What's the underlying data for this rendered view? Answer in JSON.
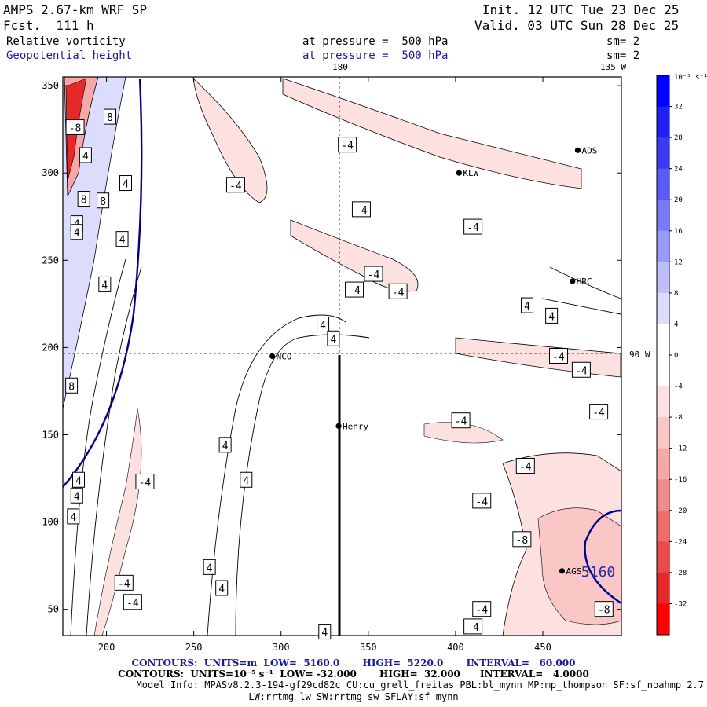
{
  "header": {
    "model": "AMPS 2.67-km WRF SP",
    "init": "Init. 12 UTC Tue 23 Dec 25",
    "fcst": "Fcst.  111 h",
    "valid": "Valid. 03 UTC Sun 28 Dec 25",
    "field1": "Relative vorticity",
    "field1_level": "at pressure =  500 hPa",
    "field1_sm": "sm= 2",
    "field2": "Geopotential height",
    "field2_level": "at pressure =  500 hPa",
    "field2_sm": "sm= 2"
  },
  "map_labels": {
    "lon_top": "180",
    "lon_topright": "135 W",
    "lon_right": "90 W"
  },
  "stations": [
    {
      "name": "NCO",
      "x": 295,
      "y": 195
    },
    {
      "name": "Henry",
      "x": 333,
      "y": 155
    },
    {
      "name": "HRC",
      "x": 467,
      "y": 238
    },
    {
      "name": "ADS",
      "x": 470,
      "y": 313
    },
    {
      "name": "KLW",
      "x": 402,
      "y": 300
    },
    {
      "name": "AGS",
      "x": 461,
      "y": 72
    }
  ],
  "chart_data": {
    "type": "contour",
    "xlim": [
      175,
      495
    ],
    "ylim": [
      35,
      355
    ],
    "xticks": [
      200,
      250,
      300,
      350,
      400,
      450
    ],
    "yticks": [
      50,
      100,
      150,
      200,
      250,
      300,
      350
    ],
    "height_contour_labels": [
      {
        "text": "5160",
        "x": 472,
        "y": 72
      }
    ],
    "vorticity_contour_labels": [
      {
        "text": "-8",
        "x": 182,
        "y": 326
      },
      {
        "text": "8",
        "x": 202,
        "y": 332
      },
      {
        "text": "4",
        "x": 188,
        "y": 310
      },
      {
        "text": "4",
        "x": 211,
        "y": 294
      },
      {
        "text": "8",
        "x": 187,
        "y": 285
      },
      {
        "text": "8",
        "x": 198,
        "y": 284
      },
      {
        "text": "4",
        "x": 183,
        "y": 271
      },
      {
        "text": "4",
        "x": 183,
        "y": 266
      },
      {
        "text": "4",
        "x": 209,
        "y": 262
      },
      {
        "text": "4",
        "x": 199,
        "y": 236
      },
      {
        "text": "8",
        "x": 180,
        "y": 178
      },
      {
        "text": "4",
        "x": 184,
        "y": 124
      },
      {
        "text": "4",
        "x": 183,
        "y": 115
      },
      {
        "text": "4",
        "x": 181,
        "y": 103
      },
      {
        "text": "-4",
        "x": 222,
        "y": 123
      },
      {
        "text": "-4",
        "x": 210,
        "y": 65
      },
      {
        "text": "-4",
        "x": 215,
        "y": 54
      },
      {
        "text": "4",
        "x": 268,
        "y": 144
      },
      {
        "text": "4",
        "x": 280,
        "y": 124
      },
      {
        "text": "4",
        "x": 259,
        "y": 74
      },
      {
        "text": "4",
        "x": 266,
        "y": 62
      },
      {
        "text": "4",
        "x": 325,
        "y": 37
      },
      {
        "text": "-4",
        "x": 274,
        "y": 293
      },
      {
        "text": "-4",
        "x": 338,
        "y": 316
      },
      {
        "text": "-4",
        "x": 346,
        "y": 279
      },
      {
        "text": "-4",
        "x": 342,
        "y": 233
      },
      {
        "text": "-4",
        "x": 353,
        "y": 242
      },
      {
        "text": "-4",
        "x": 367,
        "y": 232
      },
      {
        "text": "4",
        "x": 324,
        "y": 213
      },
      {
        "text": "4",
        "x": 330,
        "y": 205
      },
      {
        "text": "-4",
        "x": 410,
        "y": 269
      },
      {
        "text": "4",
        "x": 441,
        "y": 224
      },
      {
        "text": "4",
        "x": 455,
        "y": 218
      },
      {
        "text": "-4",
        "x": 459,
        "y": 195
      },
      {
        "text": "-4",
        "x": 472,
        "y": 187
      },
      {
        "text": "-4",
        "x": 482,
        "y": 163
      },
      {
        "text": "-4",
        "x": 403,
        "y": 158
      },
      {
        "text": "-4",
        "x": 440,
        "y": 132
      },
      {
        "text": "-4",
        "x": 415,
        "y": 112
      },
      {
        "text": "-8",
        "x": 438,
        "y": 90
      },
      {
        "text": "-4",
        "x": 415,
        "y": 50
      },
      {
        "text": "-4",
        "x": 410,
        "y": 40
      },
      {
        "text": "-8",
        "x": 485,
        "y": 50
      }
    ]
  },
  "colorbar": {
    "unit_label": "10⁻⁵ s⁻¹",
    "levels": [
      "32",
      "28",
      "24",
      "20",
      "16",
      "12",
      "8",
      "4",
      "0",
      "-4",
      "-8",
      "-12",
      "-16",
      "-20",
      "-24",
      "-28",
      "-32"
    ],
    "colors": [
      "#0000ff",
      "#1f1ff6",
      "#3a3af2",
      "#5a5af4",
      "#7a7af6",
      "#9a9af8",
      "#bebefa",
      "#dcdcfd",
      "#ffffff",
      "#ffffff",
      "#fde0e0",
      "#fbc6c6",
      "#f6a8a8",
      "#f28c8c",
      "#ee6c6c",
      "#ea4a4a",
      "#e62a2a",
      "#ff0000"
    ]
  },
  "footer": {
    "line1": "CONTOURS:  UNITS=m  LOW=  5160.0       HIGH=  5220.0       INTERVAL=   60.000",
    "line2": "CONTOURS:  UNITS=10⁻⁵ s⁻¹  LOW= -32.000       HIGH=  32.000      INTERVAL=   4.0000",
    "line3": "Model Info: MPASv8.2.3-194-gf29cd82c CU:cu_grell_freitas PBL:bl_mynn MP:mp_thompson SF:sf_noahmp 2.7",
    "line4": "LW:rrtmg_lw SW:rrtmg_sw SFLAY:sf_mynn"
  },
  "colors": {
    "height_contour": "#00008b",
    "frame": "#000000",
    "vort_line": "#000000"
  }
}
